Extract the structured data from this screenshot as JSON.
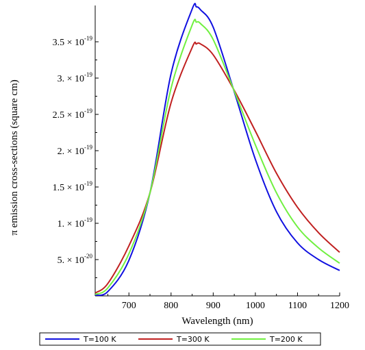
{
  "chart_data": {
    "type": "line",
    "title": "",
    "xlabel": "Wavelength (nm)",
    "ylabel": "π emission cross-sections (square cm)",
    "xlim": [
      620,
      1200
    ],
    "ylim": [
      0,
      4e-19
    ],
    "x_ticks": [
      700,
      800,
      900,
      1000,
      1100,
      1200
    ],
    "x_tick_labels": [
      "700",
      "800",
      "900",
      "1000",
      "1100",
      "1200"
    ],
    "y_ticks": [
      {
        "value": 5e-20,
        "mantissa": "5. × 10",
        "exponent": "-20"
      },
      {
        "value": 1e-19,
        "mantissa": "1. × 10",
        "exponent": "-19"
      },
      {
        "value": 1.5e-19,
        "mantissa": "1.5 × 10",
        "exponent": "-19"
      },
      {
        "value": 2e-19,
        "mantissa": "2. × 10",
        "exponent": "-19"
      },
      {
        "value": 2.5e-19,
        "mantissa": "2.5 × 10",
        "exponent": "-19"
      },
      {
        "value": 3e-19,
        "mantissa": "3. × 10",
        "exponent": "-19"
      },
      {
        "value": 3.5e-19,
        "mantissa": "3.5 × 10",
        "exponent": "-19"
      }
    ],
    "grid": false,
    "legend_position": "bottom",
    "x": [
      620,
      650,
      700,
      750,
      800,
      850,
      860,
      870,
      900,
      950,
      1000,
      1050,
      1100,
      1150,
      1200
    ],
    "series": [
      {
        "name": "T=100 K",
        "color": "#1010e0",
        "values": [
          1e-21,
          6e-21,
          4.9e-20,
          1.42e-19,
          3.06e-19,
          3.95e-19,
          3.98e-19,
          3.94e-19,
          3.7e-19,
          2.81e-19,
          1.88e-19,
          1.16e-19,
          7.3e-20,
          5e-20,
          3.5e-20
        ]
      },
      {
        "name": "T=300 K",
        "color": "#c02020",
        "values": [
          4e-21,
          1.7e-20,
          6.9e-20,
          1.42e-19,
          2.66e-19,
          3.42e-19,
          3.47e-19,
          3.47e-19,
          3.32e-19,
          2.83e-19,
          2.27e-19,
          1.69e-19,
          1.22e-19,
          8.7e-20,
          6e-20
        ]
      },
      {
        "name": "T=200 K",
        "color": "#70f040",
        "values": [
          2e-21,
          1.1e-20,
          5.8e-20,
          1.42e-19,
          2.86e-19,
          3.73e-19,
          3.77e-19,
          3.75e-19,
          3.53e-19,
          2.82e-19,
          2.08e-19,
          1.42e-19,
          9.5e-20,
          6.6e-20,
          4.5e-20
        ]
      }
    ]
  }
}
